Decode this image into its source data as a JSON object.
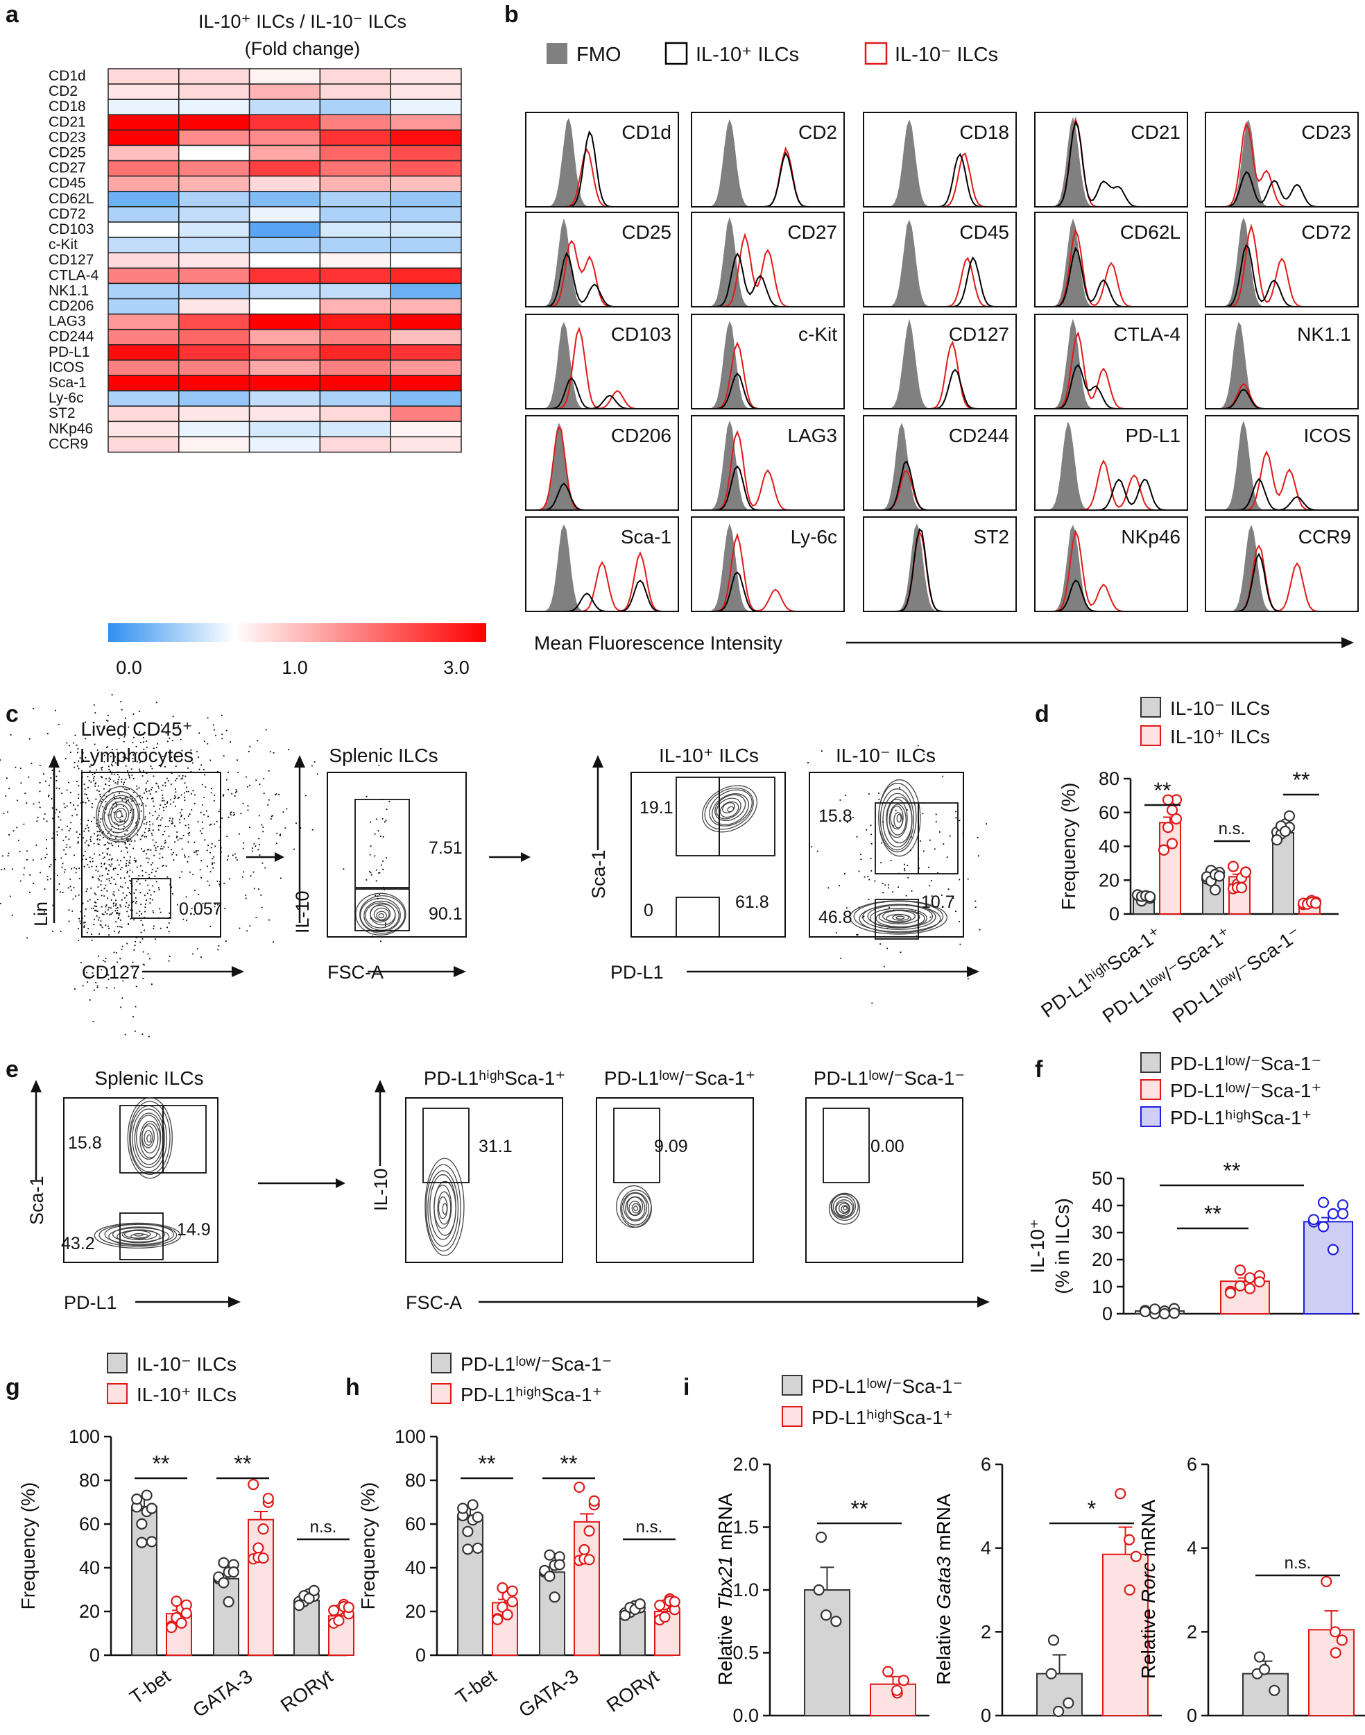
{
  "panel_letters": [
    "a",
    "b",
    "c",
    "d",
    "e",
    "f",
    "g",
    "h",
    "i"
  ],
  "colors": {
    "heat_low": "#2f8ff0",
    "heat_mid": "#ffffff",
    "heat_high": "#ff0000",
    "fmo_fill": "#808080",
    "pos_line": "#000000",
    "neg_line": "#e01818",
    "grey_bar": "#d4d4d4",
    "pink_bar": "#fde2e2",
    "blue_bar": "#cfcff5",
    "red": "#e01818",
    "blue": "#1e1ee0"
  },
  "chart_data": [
    {
      "id": "a",
      "type": "heatmap",
      "title_line1": "IL-10⁺ ILCs / IL-10⁻ ILCs",
      "title_line2": "(Fold change)",
      "rows": [
        "CD1d",
        "CD2",
        "CD18",
        "CD21",
        "CD23",
        "CD25",
        "CD27",
        "CD45",
        "CD62L",
        "CD72",
        "CD103",
        "c-Kit",
        "CD127",
        "CTLA-4",
        "NK1.1",
        "CD206",
        "LAG3",
        "CD244",
        "PD-L1",
        "ICOS",
        "Sca-1",
        "Ly-6c",
        "ST2",
        "NKp46",
        "CCR9"
      ],
      "n_columns": 5,
      "values": [
        [
          1.3,
          1.3,
          1.1,
          1.3,
          1.2
        ],
        [
          1.2,
          1.3,
          1.6,
          1.3,
          1.2
        ],
        [
          0.9,
          0.9,
          0.7,
          0.6,
          0.9
        ],
        [
          3.0,
          3.0,
          2.6,
          2.0,
          1.8
        ],
        [
          3.0,
          1.9,
          1.9,
          2.6,
          2.9
        ],
        [
          1.5,
          1.0,
          1.7,
          2.2,
          2.4
        ],
        [
          2.1,
          2.0,
          2.5,
          2.1,
          2.3
        ],
        [
          1.7,
          1.6,
          1.3,
          1.6,
          1.5
        ],
        [
          0.3,
          0.6,
          0.4,
          0.6,
          0.5
        ],
        [
          0.6,
          0.7,
          0.9,
          0.6,
          0.6
        ],
        [
          1.0,
          0.8,
          0.2,
          0.8,
          0.8
        ],
        [
          0.7,
          0.7,
          0.6,
          0.6,
          0.6
        ],
        [
          1.3,
          1.2,
          1.0,
          1.1,
          1.0
        ],
        [
          2.0,
          2.0,
          2.6,
          2.6,
          2.7
        ],
        [
          0.6,
          0.6,
          0.7,
          0.7,
          0.3
        ],
        [
          0.6,
          1.2,
          1.0,
          1.6,
          1.6
        ],
        [
          1.8,
          2.4,
          3.0,
          2.8,
          3.0
        ],
        [
          2.0,
          2.2,
          1.7,
          2.0,
          1.5
        ],
        [
          2.9,
          2.6,
          2.3,
          2.7,
          2.6
        ],
        [
          2.0,
          2.0,
          1.7,
          2.0,
          1.8
        ],
        [
          3.0,
          3.0,
          3.0,
          3.0,
          3.0
        ],
        [
          0.6,
          0.5,
          0.7,
          0.6,
          0.4
        ],
        [
          1.3,
          1.2,
          1.2,
          1.3,
          2.0
        ],
        [
          1.2,
          0.9,
          0.8,
          0.8,
          1.1
        ],
        [
          1.3,
          1.1,
          0.9,
          1.3,
          1.2
        ]
      ],
      "colorbar_ticks": [
        "0.0",
        "1.0",
        "3.0"
      ],
      "colorbar_values": [
        0,
        1,
        3
      ]
    },
    {
      "id": "b",
      "type": "histogram_grid",
      "legend": [
        "FMO",
        "IL-10⁺ ILCs",
        "IL-10⁻ ILCs"
      ],
      "markers": [
        "CD1d",
        "CD2",
        "CD18",
        "CD21",
        "CD23",
        "CD25",
        "CD27",
        "CD45",
        "CD62L",
        "CD72",
        "CD103",
        "c-Kit",
        "CD127",
        "CTLA-4",
        "NK1.1",
        "CD206",
        "LAG3",
        "CD244",
        "PD-L1",
        "ICOS",
        "Sca-1",
        "Ly-6c",
        "ST2",
        "NKp46",
        "CCR9"
      ],
      "xlabel": "Mean Fluorescence Intensity",
      "peaks": [
        {
          "fmo": 0.28,
          "pos": [
            [
              0.42,
              0.85
            ]
          ],
          "neg": [
            [
              0.4,
              0.65
            ]
          ]
        },
        {
          "fmo": 0.25,
          "pos": [
            [
              0.62,
              0.6
            ]
          ],
          "neg": [
            [
              0.62,
              0.65
            ]
          ]
        },
        {
          "fmo": 0.3,
          "pos": [
            [
              0.63,
              0.6
            ]
          ],
          "neg": [
            [
              0.66,
              0.6
            ]
          ]
        },
        {
          "fmo": 0.25,
          "pos": [
            [
              0.27,
              0.95
            ],
            [
              0.45,
              0.28
            ],
            [
              0.55,
              0.22
            ]
          ],
          "neg": [
            [
              0.27,
              0.98
            ]
          ]
        },
        {
          "fmo": 0.28,
          "pos": [
            [
              0.27,
              0.4
            ],
            [
              0.45,
              0.3
            ],
            [
              0.6,
              0.25
            ]
          ],
          "neg": [
            [
              0.27,
              0.95
            ],
            [
              0.4,
              0.4
            ]
          ]
        },
        {
          "fmo": 0.25,
          "pos": [
            [
              0.27,
              0.6
            ],
            [
              0.45,
              0.25
            ]
          ],
          "neg": [
            [
              0.3,
              0.75
            ],
            [
              0.42,
              0.55
            ]
          ]
        },
        {
          "fmo": 0.25,
          "pos": [
            [
              0.3,
              0.6
            ],
            [
              0.45,
              0.35
            ]
          ],
          "neg": [
            [
              0.35,
              0.8
            ],
            [
              0.5,
              0.65
            ]
          ]
        },
        {
          "fmo": 0.3,
          "pos": [
            [
              0.72,
              0.55
            ]
          ],
          "neg": [
            [
              0.68,
              0.55
            ]
          ]
        },
        {
          "fmo": 0.25,
          "pos": [
            [
              0.27,
              0.65
            ],
            [
              0.45,
              0.3
            ]
          ],
          "neg": [
            [
              0.27,
              0.85
            ],
            [
              0.5,
              0.5
            ]
          ]
        },
        {
          "fmo": 0.25,
          "pos": [
            [
              0.27,
              0.7
            ],
            [
              0.45,
              0.3
            ]
          ],
          "neg": [
            [
              0.3,
              0.9
            ],
            [
              0.5,
              0.55
            ]
          ]
        },
        {
          "fmo": 0.25,
          "pos": [
            [
              0.3,
              0.35
            ],
            [
              0.55,
              0.15
            ]
          ],
          "neg": [
            [
              0.35,
              0.9
            ],
            [
              0.6,
              0.2
            ]
          ]
        },
        {
          "fmo": 0.25,
          "pos": [
            [
              0.3,
              0.4
            ]
          ],
          "neg": [
            [
              0.3,
              0.75
            ]
          ]
        },
        {
          "fmo": 0.3,
          "pos": [
            [
              0.6,
              0.45
            ]
          ],
          "neg": [
            [
              0.58,
              0.75
            ]
          ]
        },
        {
          "fmo": 0.25,
          "pos": [
            [
              0.28,
              0.5
            ],
            [
              0.4,
              0.25
            ]
          ],
          "neg": [
            [
              0.28,
              0.85
            ],
            [
              0.45,
              0.45
            ]
          ]
        },
        {
          "fmo": 0.22,
          "pos": [
            [
              0.25,
              0.22
            ]
          ],
          "neg": [
            [
              0.25,
              0.28
            ]
          ]
        },
        {
          "fmo": 0.22,
          "pos": [
            [
              0.25,
              0.3
            ]
          ],
          "neg": [
            [
              0.22,
              0.95
            ]
          ]
        },
        {
          "fmo": 0.25,
          "pos": [
            [
              0.3,
              0.5
            ]
          ],
          "neg": [
            [
              0.3,
              0.9
            ],
            [
              0.5,
              0.45
            ]
          ]
        },
        {
          "fmo": 0.25,
          "pos": [
            [
              0.28,
              0.55
            ]
          ],
          "neg": [
            [
              0.28,
              0.45
            ]
          ]
        },
        {
          "fmo": 0.22,
          "pos": [
            [
              0.55,
              0.35
            ],
            [
              0.72,
              0.35
            ]
          ],
          "neg": [
            [
              0.45,
              0.55
            ],
            [
              0.65,
              0.4
            ]
          ]
        },
        {
          "fmo": 0.25,
          "pos": [
            [
              0.35,
              0.35
            ],
            [
              0.6,
              0.15
            ]
          ],
          "neg": [
            [
              0.4,
              0.65
            ],
            [
              0.55,
              0.45
            ]
          ]
        },
        {
          "fmo": 0.25,
          "pos": [
            [
              0.4,
              0.2
            ],
            [
              0.75,
              0.35
            ]
          ],
          "neg": [
            [
              0.5,
              0.55
            ],
            [
              0.75,
              0.65
            ]
          ]
        },
        {
          "fmo": 0.25,
          "pos": [
            [
              0.3,
              0.45
            ]
          ],
          "neg": [
            [
              0.3,
              0.85
            ],
            [
              0.55,
              0.25
            ]
          ]
        },
        {
          "fmo": 0.35,
          "pos": [
            [
              0.37,
              0.95
            ]
          ],
          "neg": [
            [
              0.37,
              0.9
            ]
          ]
        },
        {
          "fmo": 0.25,
          "pos": [
            [
              0.27,
              0.35
            ]
          ],
          "neg": [
            [
              0.27,
              0.9
            ],
            [
              0.45,
              0.3
            ]
          ]
        },
        {
          "fmo": 0.3,
          "pos": [
            [
              0.35,
              0.65
            ]
          ],
          "neg": [
            [
              0.35,
              0.75
            ],
            [
              0.6,
              0.55
            ]
          ]
        }
      ]
    },
    {
      "id": "c",
      "type": "flow_gating",
      "plots": [
        {
          "title": "Lived CD45⁺\nLymphocytes",
          "xlabel": "CD127",
          "ylabel": "Lin",
          "gates": [
            "0.057"
          ]
        },
        {
          "title": "Splenic ILCs",
          "xlabel": "FSC-A",
          "ylabel": "IL-10",
          "gates": [
            "7.51",
            "90.1"
          ]
        },
        {
          "title": "IL-10⁺ ILCs",
          "xlabel": "PD-L1",
          "ylabel": "Sca-1",
          "gates": [
            "19.1",
            "61.8",
            "0"
          ]
        },
        {
          "title": "IL-10⁻ ILCs",
          "gates": [
            "15.8",
            "10.7",
            "46.8"
          ]
        }
      ]
    },
    {
      "id": "d",
      "type": "bar",
      "legend": [
        "IL-10⁻ ILCs",
        "IL-10⁺ ILCs"
      ],
      "categories": [
        "PD-L1ʰⁱᵍʰSca-1⁺",
        "PD-L1ˡᵒʷ/⁻Sca-1⁺",
        "PD-L1ˡᵒʷ/⁻Sca-1⁻"
      ],
      "series": [
        {
          "name": "IL-10⁻ ILCs",
          "values": [
            11,
            21,
            48
          ]
        },
        {
          "name": "IL-10⁺ ILCs",
          "values": [
            54,
            22,
            6
          ]
        }
      ],
      "ylabel": "Frequency (%)",
      "ylim": [
        0,
        80
      ],
      "yticks": [
        0,
        20,
        40,
        60,
        80
      ],
      "significance": [
        "**",
        "n.s.",
        "**"
      ]
    },
    {
      "id": "e",
      "type": "flow_gating",
      "plots": [
        {
          "title": "Splenic ILCs",
          "xlabel": "PD-L1",
          "ylabel": "Sca-1",
          "gates": [
            "15.8",
            "14.9",
            "43.2"
          ]
        },
        {
          "title": "PD-L1ʰⁱᵍʰSca-1⁺",
          "xlabel": "FSC-A",
          "ylabel": "IL-10",
          "gates": [
            "31.1"
          ]
        },
        {
          "title": "PD-L1ˡᵒʷ/⁻Sca-1⁺",
          "gates": [
            "9.09"
          ]
        },
        {
          "title": "PD-L1ˡᵒʷ/⁻Sca-1⁻",
          "gates": [
            "0.00"
          ]
        }
      ]
    },
    {
      "id": "f",
      "type": "bar",
      "legend": [
        "PD-L1ˡᵒʷ/⁻Sca-1⁻",
        "PD-L1ˡᵒʷ/⁻Sca-1⁺",
        "PD-L1ʰⁱᵍʰSca-1⁺"
      ],
      "values": [
        1,
        12,
        34
      ],
      "ylabel_line1": "IL-10⁺",
      "ylabel_line2": "(% in ILCs)",
      "ylim": [
        0,
        50
      ],
      "yticks": [
        0,
        10,
        20,
        30,
        40,
        50
      ],
      "significance": [
        "**",
        "**"
      ]
    },
    {
      "id": "g",
      "type": "bar",
      "legend": [
        "IL-10⁻ ILCs",
        "IL-10⁺ ILCs"
      ],
      "categories": [
        "T-bet",
        "GATA-3",
        "RORγt"
      ],
      "series": [
        {
          "name": "IL-10⁻ ILCs",
          "values": [
            68,
            35,
            25
          ]
        },
        {
          "name": "IL-10⁺ ILCs",
          "values": [
            19,
            62,
            18
          ]
        }
      ],
      "ylabel": "Frequency  (%)",
      "ylim": [
        0,
        100
      ],
      "yticks": [
        0,
        20,
        40,
        60,
        80,
        100
      ],
      "significance": [
        "**",
        "**",
        "n.s."
      ]
    },
    {
      "id": "h",
      "type": "bar",
      "legend": [
        "PD-L1ˡᵒʷ/⁻Sca-1⁻",
        "PD-L1ʰⁱᵍʰSca-1⁺"
      ],
      "categories": [
        "T-bet",
        "GATA-3",
        "RORγt"
      ],
      "series": [
        {
          "name": "PD-L1ˡᵒʷ/⁻Sca-1⁻",
          "values": [
            64,
            38,
            20
          ]
        },
        {
          "name": "PD-L1ʰⁱᵍʰSca-1⁺",
          "values": [
            24,
            61,
            20
          ]
        }
      ],
      "ylabel": "Frequency (%)",
      "ylim": [
        0,
        100
      ],
      "yticks": [
        0,
        20,
        40,
        60,
        80,
        100
      ],
      "significance": [
        "**",
        "**",
        "n.s."
      ]
    },
    {
      "id": "i",
      "type": "bar",
      "legend": [
        "PD-L1ˡᵒʷ/⁻Sca-1⁻",
        "PD-L1ʰⁱᵍʰSca-1⁺"
      ],
      "subplots": [
        {
          "gene": "Tbx21",
          "ylabel_prefix": "Relative ",
          "ylabel_suffix": " mRNA",
          "values": [
            1.0,
            0.25
          ],
          "errors": [
            0.18,
            0.06
          ],
          "points": [
            [
              1.42,
              1.0,
              0.75,
              0.8
            ],
            [
              0.35,
              0.28,
              0.18,
              0.2
            ]
          ],
          "ylim": [
            0,
            2.0
          ],
          "yticks": [
            "0.0",
            "0.5",
            "1.0",
            "1.5",
            "2.0"
          ],
          "significance": "**"
        },
        {
          "gene": "Gata3",
          "ylabel_prefix": "Relative ",
          "ylabel_suffix": " mRNA",
          "values": [
            1.0,
            3.85
          ],
          "errors": [
            0.45,
            0.65
          ],
          "points": [
            [
              1.8,
              1.0,
              0.3,
              0.1
            ],
            [
              5.3,
              3.8,
              3.0,
              4.2
            ]
          ],
          "ylim": [
            0,
            6
          ],
          "yticks": [
            "0",
            "2",
            "4",
            "6"
          ],
          "significance": "*"
        },
        {
          "gene": "Rorc",
          "ylabel_prefix": "Relative ",
          "ylabel_suffix": " mRNA",
          "values": [
            1.0,
            2.05
          ],
          "errors": [
            0.3,
            0.45
          ],
          "points": [
            [
              1.4,
              1.0,
              0.6,
              1.1
            ],
            [
              3.2,
              1.8,
              1.5,
              2.0
            ]
          ],
          "ylim": [
            0,
            6
          ],
          "yticks": [
            "0",
            "2",
            "4",
            "6"
          ],
          "significance": "n.s."
        }
      ]
    }
  ]
}
